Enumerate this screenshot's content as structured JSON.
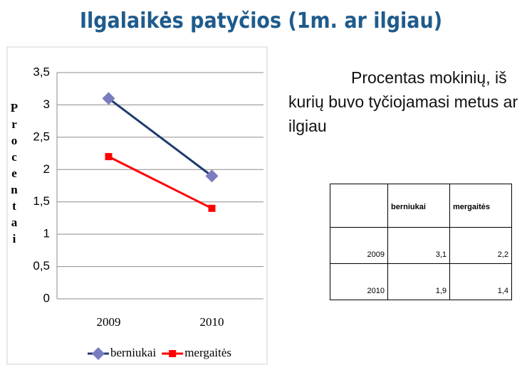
{
  "title": "Ilgalaikės patyčios (1m. ar ilgiau)",
  "description": "Procentas mokinių, iš kurių buvo tyčiojamasi metus ar ilgiau",
  "table": {
    "header": [
      "",
      "berniukai",
      "mergaitės"
    ],
    "rows": [
      [
        "2009",
        "3,1",
        "2,2"
      ],
      [
        "2010",
        "1,9",
        "1,4"
      ]
    ]
  },
  "chart_data": {
    "type": "line",
    "y_label": "Procentai",
    "categories": [
      "2009",
      "2010"
    ],
    "series": [
      {
        "name": "berniukai",
        "color": "#1f3a6e",
        "marker": "diamond",
        "marker_color": "#7b7bbf",
        "values": [
          3.1,
          1.9
        ]
      },
      {
        "name": "mergaitės",
        "color": "#ff0000",
        "marker": "square",
        "marker_color": "#ff0000",
        "values": [
          2.2,
          1.4
        ]
      }
    ],
    "ylim": [
      0,
      3.5
    ],
    "yticks": [
      0,
      {
        "value": 0.5,
        "label": "0,5"
      },
      1,
      {
        "value": 1.5,
        "label": "1,5"
      },
      2,
      {
        "value": 2.5,
        "label": "2,5"
      },
      3,
      {
        "value": 3.5,
        "label": "3,5"
      }
    ],
    "grid": true,
    "legend": "bottom"
  }
}
